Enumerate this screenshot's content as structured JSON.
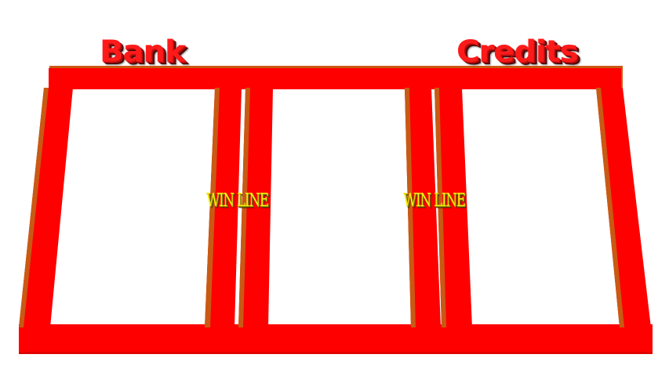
{
  "labels": {
    "bank": "Bank",
    "credits": "Credits"
  },
  "win_lines": [
    {
      "text": "WIN LINE"
    },
    {
      "text": "WIN LINE"
    }
  ],
  "colors": {
    "frame_red": "#ff0000",
    "frame_shadow": "#c85a14",
    "label_red": "#ff1a1a",
    "winline_yellow": "#f4ec10"
  },
  "reels": {
    "count": 3
  }
}
